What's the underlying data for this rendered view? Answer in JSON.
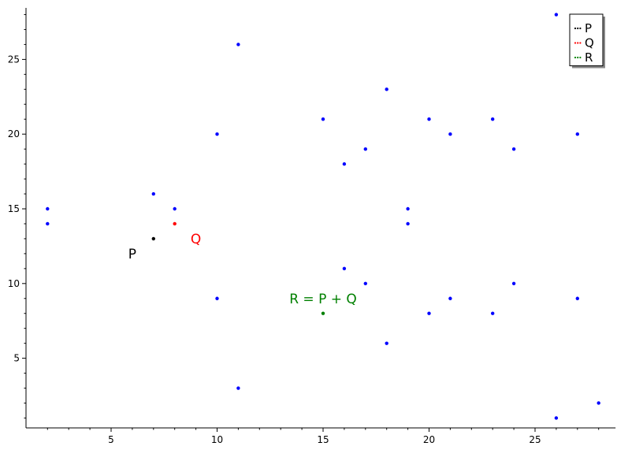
{
  "chart_data": {
    "type": "scatter",
    "xlim": [
      1.5,
      28.5
    ],
    "ylim": [
      0.5,
      28.5
    ],
    "x_ticks": [
      5,
      10,
      15,
      20,
      25
    ],
    "y_ticks": [
      5,
      10,
      15,
      20,
      25
    ],
    "grid": false,
    "legend_position": "top-right",
    "series": [
      {
        "name": "",
        "color": "#0000ff",
        "points": [
          [
            2,
            14
          ],
          [
            2,
            15
          ],
          [
            7,
            16
          ],
          [
            8,
            15
          ],
          [
            10,
            9
          ],
          [
            10,
            20
          ],
          [
            11,
            3
          ],
          [
            11,
            26
          ],
          [
            15,
            21
          ],
          [
            16,
            11
          ],
          [
            16,
            18
          ],
          [
            17,
            10
          ],
          [
            17,
            19
          ],
          [
            18,
            6
          ],
          [
            18,
            23
          ],
          [
            19,
            14
          ],
          [
            19,
            15
          ],
          [
            20,
            8
          ],
          [
            20,
            21
          ],
          [
            21,
            9
          ],
          [
            21,
            20
          ],
          [
            23,
            8
          ],
          [
            23,
            21
          ],
          [
            24,
            10
          ],
          [
            24,
            19
          ],
          [
            26,
            1
          ],
          [
            26,
            28
          ],
          [
            27,
            9
          ],
          [
            27,
            20
          ],
          [
            28,
            2
          ]
        ]
      },
      {
        "name": "P",
        "color": "#000000",
        "points": [
          [
            7,
            13
          ]
        ]
      },
      {
        "name": "Q",
        "color": "#ff0000",
        "points": [
          [
            8,
            14
          ]
        ]
      },
      {
        "name": "R",
        "color": "#008000",
        "points": [
          [
            15,
            8
          ]
        ]
      }
    ],
    "annotations": [
      {
        "text": "P",
        "x": 6,
        "y": 12,
        "color": "#000000"
      },
      {
        "text": "Q",
        "x": 9,
        "y": 13,
        "color": "#ff0000"
      },
      {
        "text": "R = P + Q",
        "x": 15,
        "y": 9,
        "color": "#008000"
      }
    ]
  }
}
